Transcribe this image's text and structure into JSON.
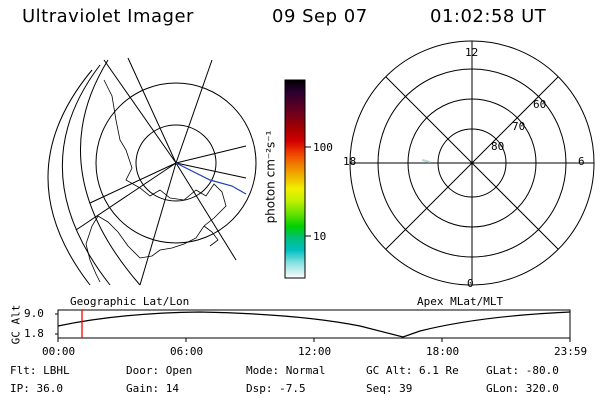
{
  "header": {
    "instrument": "Ultraviolet Imager",
    "date": "09 Sep 07",
    "time": "01:02:58 UT"
  },
  "geo_panel": {
    "label": "Geographic Lat/Lon"
  },
  "apex_panel": {
    "label": "Apex MLat/MLT",
    "mlt_labels": {
      "top": "12",
      "left": "18",
      "right": "6",
      "bottom": "0"
    },
    "lat_labels": [
      "60",
      "70",
      "80"
    ]
  },
  "colorbar": {
    "unit_label": "photon cm⁻²s⁻¹",
    "ticks": [
      "100",
      "10"
    ],
    "colors": [
      "#000000",
      "#2a0030",
      "#6a0020",
      "#a00000",
      "#d40000",
      "#f04000",
      "#f08000",
      "#f0c000",
      "#f0f000",
      "#c0f000",
      "#60e000",
      "#00d000",
      "#00c080",
      "#00c0c0",
      "#80e0e0",
      "#d0f0f0",
      "#ffffff"
    ]
  },
  "altitude_plot": {
    "ylabel": "GC Alt",
    "yticks": [
      "9.0",
      "1.8"
    ],
    "xticks": [
      "00:00",
      "06:00",
      "12:00",
      "18:00",
      "23:59"
    ],
    "marker_color": "#ff0000"
  },
  "status": {
    "flt": "Flt: LBHL",
    "ip": "IP: 36.0",
    "door": "Door: Open",
    "gain": "Gain: 14",
    "mode": "Mode: Normal",
    "dsp": "Dsp:  -7.5",
    "gc_alt": "GC Alt: 6.1 Re",
    "seq": "Seq: 39",
    "glat": "GLat: -80.0",
    "glon": "GLon: 320.0"
  }
}
